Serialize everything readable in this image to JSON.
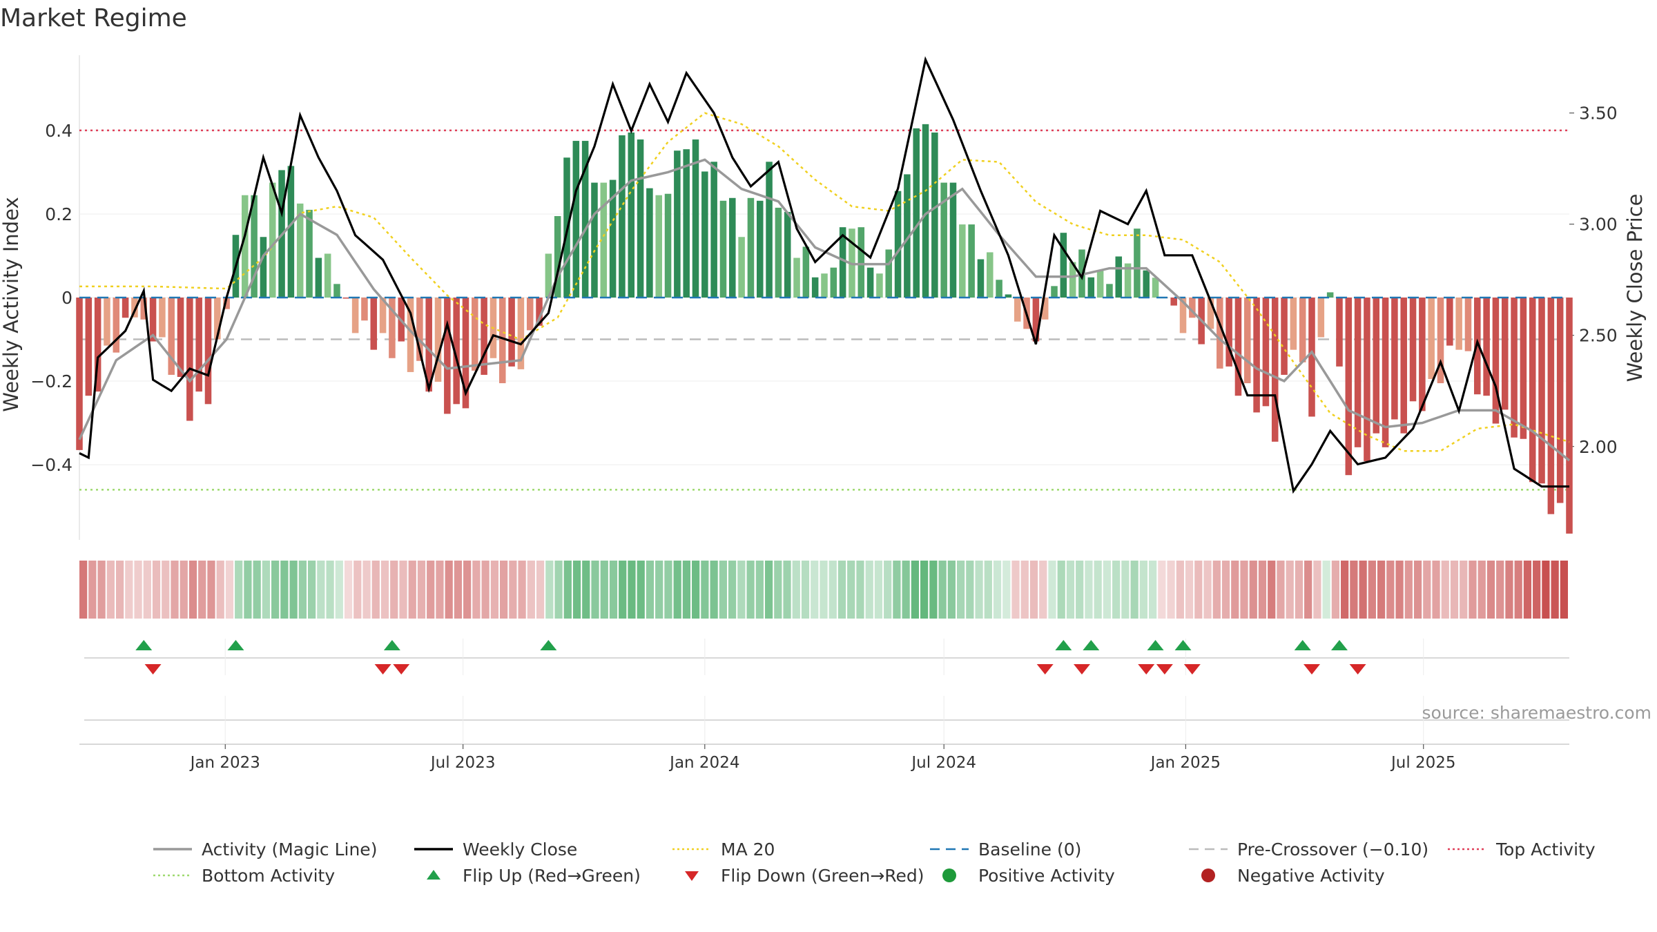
{
  "title": "Market Regime",
  "source": "source: sharemaestro.com",
  "legend": [
    {
      "label": "Activity (Magic Line)",
      "icon": "solid-line",
      "color": "#999999"
    },
    {
      "label": "Weekly Close",
      "icon": "solid-line",
      "color": "#000000"
    },
    {
      "label": "MA 20",
      "icon": "dotted-line",
      "color": "#f0d020"
    },
    {
      "label": "Baseline (0)",
      "icon": "dashed-line",
      "color": "#1f77b4"
    },
    {
      "label": "Pre-Crossover (−0.10)",
      "icon": "dashed-line",
      "color": "#bbbbbb"
    },
    {
      "label": "Top Activity",
      "icon": "dotted-line",
      "color": "#e0405a"
    },
    {
      "label": "Bottom Activity",
      "icon": "dotted-line",
      "color": "#9ed96e"
    },
    {
      "label": "Flip Up (Red→Green)",
      "icon": "triangle-up",
      "color": "#22a04b"
    },
    {
      "label": "Flip Down (Green→Red)",
      "icon": "triangle-down",
      "color": "#d62728"
    },
    {
      "label": "Positive Activity",
      "icon": "circle",
      "color": "#1e9a3a"
    },
    {
      "label": "Negative Activity",
      "icon": "circle",
      "color": "#b22222"
    }
  ],
  "chart_data": {
    "type": "bar",
    "ylabel": "Weekly Activity Index",
    "y2label": "Weekly Close Price",
    "ylim": [
      -0.58,
      0.58
    ],
    "y2lim": [
      1.58,
      3.76
    ],
    "yticks": [
      0.4,
      0.2,
      0,
      -0.2,
      -0.4
    ],
    "yticklabels": [
      "0.4",
      "0.2",
      "0",
      "−0.2",
      "−0.4"
    ],
    "y2ticks": [
      3.5,
      3.0,
      2.5,
      2.0
    ],
    "y2ticklabels": [
      "3.50",
      "3.00",
      "2.50",
      "2.00"
    ],
    "x_start": "2022-09-12",
    "x_end": "2025-10-20",
    "xticks": [
      "2023-01-01",
      "2023-07-01",
      "2024-01-01",
      "2024-07-01",
      "2025-01-01",
      "2025-07-01"
    ],
    "xticklabels": [
      "Jan 2023",
      "Jul 2023",
      "Jan 2024",
      "Jul 2024",
      "Jan 2025",
      "Jul 2025"
    ],
    "colors": {
      "pos_dark": "#2e8b57",
      "pos_mid": "#52a56a",
      "pos_light": "#86c588",
      "neg_dark": "#c9514f",
      "neg_mid": "#e08a78",
      "neg_light": "#e6a286",
      "close": "#000000",
      "magic": "#999999",
      "ma20": "#f0d020",
      "baseline": "#1f77b4",
      "precross": "#bbbbbb",
      "top": "#e0405a",
      "bottom": "#9ed96e",
      "flip_up": "#22a04b",
      "flip_down": "#d62728"
    },
    "ref_lines": {
      "baseline": 0,
      "pre_crossover": -0.1,
      "top_activity": 0.4,
      "bottom_activity": -0.46
    },
    "activity_anchors": [
      [
        "2022-09-12",
        -0.34
      ],
      [
        "2022-09-19",
        -0.26
      ],
      [
        "2022-10-03",
        -0.14
      ],
      [
        "2022-10-24",
        -0.04
      ],
      [
        "2022-11-07",
        -0.08
      ],
      [
        "2022-11-21",
        -0.16
      ],
      [
        "2022-12-05",
        -0.27
      ],
      [
        "2022-12-19",
        -0.23
      ],
      [
        "2023-01-02",
        -0.02
      ],
      [
        "2023-01-16",
        0.27
      ],
      [
        "2023-01-30",
        0.17
      ],
      [
        "2023-02-13",
        0.33
      ],
      [
        "2023-02-27",
        0.25
      ],
      [
        "2023-03-13",
        0.12
      ],
      [
        "2023-03-27",
        0.04
      ],
      [
        "2023-04-10",
        -0.06
      ],
      [
        "2023-04-24",
        -0.1
      ],
      [
        "2023-05-15",
        -0.13
      ],
      [
        "2023-06-05",
        -0.2
      ],
      [
        "2023-06-26",
        -0.28
      ],
      [
        "2023-07-17",
        -0.16
      ],
      [
        "2023-08-07",
        -0.19
      ],
      [
        "2023-08-28",
        -0.06
      ],
      [
        "2023-09-11",
        0.22
      ],
      [
        "2023-09-25",
        0.4
      ],
      [
        "2023-10-16",
        0.25
      ],
      [
        "2023-11-06",
        0.42
      ],
      [
        "2023-11-27",
        0.22
      ],
      [
        "2023-12-18",
        0.38
      ],
      [
        "2024-01-08",
        0.3
      ],
      [
        "2024-01-29",
        0.17
      ],
      [
        "2024-02-19",
        0.3
      ],
      [
        "2024-03-11",
        0.12
      ],
      [
        "2024-04-01",
        0.05
      ],
      [
        "2024-04-22",
        0.19
      ],
      [
        "2024-05-13",
        0.05
      ],
      [
        "2024-06-03",
        0.32
      ],
      [
        "2024-06-17",
        0.44
      ],
      [
        "2024-07-01",
        0.3
      ],
      [
        "2024-07-22",
        0.15
      ],
      [
        "2024-08-12",
        0.05
      ],
      [
        "2024-09-02",
        -0.1
      ],
      [
        "2024-09-16",
        -0.06
      ],
      [
        "2024-09-30",
        0.13
      ],
      [
        "2024-10-14",
        0.09
      ],
      [
        "2024-11-04",
        0.04
      ],
      [
        "2024-11-25",
        0.14
      ],
      [
        "2024-12-09",
        0.04
      ],
      [
        "2024-12-30",
        -0.06
      ],
      [
        "2025-01-20",
        -0.1
      ],
      [
        "2025-02-03",
        -0.19
      ],
      [
        "2025-02-24",
        -0.25
      ],
      [
        "2025-03-10",
        -0.32
      ],
      [
        "2025-03-24",
        -0.1
      ],
      [
        "2025-04-07",
        -0.26
      ],
      [
        "2025-04-21",
        0.02
      ],
      [
        "2025-05-05",
        -0.4
      ],
      [
        "2025-05-26",
        -0.35
      ],
      [
        "2025-06-16",
        -0.3
      ],
      [
        "2025-07-07",
        -0.22
      ],
      [
        "2025-07-28",
        -0.1
      ],
      [
        "2025-08-18",
        -0.26
      ],
      [
        "2025-09-08",
        -0.31
      ],
      [
        "2025-09-29",
        -0.47
      ],
      [
        "2025-10-20",
        -0.54
      ]
    ],
    "close_anchors": [
      [
        "2022-09-12",
        1.97
      ],
      [
        "2022-09-19",
        1.95
      ],
      [
        "2022-09-26",
        2.4
      ],
      [
        "2022-10-17",
        2.52
      ],
      [
        "2022-10-31",
        2.7
      ],
      [
        "2022-11-07",
        2.3
      ],
      [
        "2022-11-21",
        2.25
      ],
      [
        "2022-12-05",
        2.35
      ],
      [
        "2022-12-19",
        2.32
      ],
      [
        "2023-01-02",
        2.67
      ],
      [
        "2023-01-16",
        2.95
      ],
      [
        "2023-01-30",
        3.3
      ],
      [
        "2023-02-13",
        3.05
      ],
      [
        "2023-02-27",
        3.49
      ],
      [
        "2023-03-13",
        3.3
      ],
      [
        "2023-03-27",
        3.15
      ],
      [
        "2023-04-10",
        2.95
      ],
      [
        "2023-05-01",
        2.84
      ],
      [
        "2023-05-22",
        2.6
      ],
      [
        "2023-06-05",
        2.26
      ],
      [
        "2023-06-19",
        2.55
      ],
      [
        "2023-07-03",
        2.24
      ],
      [
        "2023-07-24",
        2.5
      ],
      [
        "2023-08-14",
        2.46
      ],
      [
        "2023-09-04",
        2.6
      ],
      [
        "2023-09-25",
        3.15
      ],
      [
        "2023-10-09",
        3.35
      ],
      [
        "2023-10-23",
        3.63
      ],
      [
        "2023-11-06",
        3.42
      ],
      [
        "2023-11-20",
        3.63
      ],
      [
        "2023-12-04",
        3.46
      ],
      [
        "2023-12-18",
        3.68
      ],
      [
        "2024-01-08",
        3.5
      ],
      [
        "2024-01-22",
        3.3
      ],
      [
        "2024-02-05",
        3.17
      ],
      [
        "2024-02-26",
        3.28
      ],
      [
        "2024-03-11",
        2.98
      ],
      [
        "2024-03-25",
        2.83
      ],
      [
        "2024-04-15",
        2.95
      ],
      [
        "2024-05-06",
        2.85
      ],
      [
        "2024-05-27",
        3.16
      ],
      [
        "2024-06-17",
        3.74
      ],
      [
        "2024-07-08",
        3.47
      ],
      [
        "2024-07-29",
        3.15
      ],
      [
        "2024-08-19",
        2.86
      ],
      [
        "2024-09-09",
        2.46
      ],
      [
        "2024-09-23",
        2.95
      ],
      [
        "2024-10-14",
        2.76
      ],
      [
        "2024-10-28",
        3.06
      ],
      [
        "2024-11-18",
        3.0
      ],
      [
        "2024-12-02",
        3.15
      ],
      [
        "2024-12-16",
        2.86
      ],
      [
        "2025-01-06",
        2.86
      ],
      [
        "2025-01-27",
        2.55
      ],
      [
        "2025-02-17",
        2.23
      ],
      [
        "2025-03-10",
        2.23
      ],
      [
        "2025-03-24",
        1.8
      ],
      [
        "2025-04-07",
        1.92
      ],
      [
        "2025-04-21",
        2.07
      ],
      [
        "2025-05-12",
        1.92
      ],
      [
        "2025-06-02",
        1.95
      ],
      [
        "2025-06-23",
        2.08
      ],
      [
        "2025-07-14",
        2.38
      ],
      [
        "2025-07-28",
        2.16
      ],
      [
        "2025-08-11",
        2.47
      ],
      [
        "2025-08-25",
        2.27
      ],
      [
        "2025-09-08",
        1.9
      ],
      [
        "2025-09-29",
        1.82
      ],
      [
        "2025-10-20",
        1.82
      ]
    ],
    "magic_anchors": [
      [
        "2022-09-12",
        -0.34
      ],
      [
        "2022-10-10",
        -0.15
      ],
      [
        "2022-11-07",
        -0.09
      ],
      [
        "2022-12-05",
        -0.2
      ],
      [
        "2023-01-02",
        -0.1
      ],
      [
        "2023-01-30",
        0.1
      ],
      [
        "2023-02-27",
        0.2
      ],
      [
        "2023-03-27",
        0.15
      ],
      [
        "2023-04-24",
        0.02
      ],
      [
        "2023-05-22",
        -0.08
      ],
      [
        "2023-06-19",
        -0.17
      ],
      [
        "2023-07-17",
        -0.16
      ],
      [
        "2023-08-14",
        -0.15
      ],
      [
        "2023-09-11",
        0.05
      ],
      [
        "2023-10-09",
        0.2
      ],
      [
        "2023-11-06",
        0.28
      ],
      [
        "2023-12-04",
        0.3
      ],
      [
        "2024-01-01",
        0.33
      ],
      [
        "2024-01-29",
        0.26
      ],
      [
        "2024-02-26",
        0.23
      ],
      [
        "2024-03-25",
        0.12
      ],
      [
        "2024-04-22",
        0.08
      ],
      [
        "2024-05-20",
        0.08
      ],
      [
        "2024-06-17",
        0.2
      ],
      [
        "2024-07-15",
        0.26
      ],
      [
        "2024-08-12",
        0.15
      ],
      [
        "2024-09-09",
        0.05
      ],
      [
        "2024-10-07",
        0.05
      ],
      [
        "2024-11-04",
        0.07
      ],
      [
        "2024-12-02",
        0.07
      ],
      [
        "2024-12-30",
        -0.01
      ],
      [
        "2025-01-27",
        -0.1
      ],
      [
        "2025-02-24",
        -0.17
      ],
      [
        "2025-03-17",
        -0.2
      ],
      [
        "2025-04-07",
        -0.13
      ],
      [
        "2025-05-05",
        -0.27
      ],
      [
        "2025-06-02",
        -0.31
      ],
      [
        "2025-06-30",
        -0.3
      ],
      [
        "2025-07-28",
        -0.27
      ],
      [
        "2025-08-25",
        -0.27
      ],
      [
        "2025-09-22",
        -0.32
      ],
      [
        "2025-10-20",
        -0.39
      ]
    ],
    "ma20_anchors": [
      [
        "2022-09-12",
        2.72
      ],
      [
        "2022-11-07",
        2.72
      ],
      [
        "2023-01-02",
        2.71
      ],
      [
        "2023-01-30",
        2.85
      ],
      [
        "2023-02-27",
        3.05
      ],
      [
        "2023-03-27",
        3.08
      ],
      [
        "2023-04-24",
        3.03
      ],
      [
        "2023-05-22",
        2.85
      ],
      [
        "2023-06-19",
        2.68
      ],
      [
        "2023-07-17",
        2.55
      ],
      [
        "2023-08-14",
        2.48
      ],
      [
        "2023-09-11",
        2.58
      ],
      [
        "2023-10-09",
        2.88
      ],
      [
        "2023-11-06",
        3.15
      ],
      [
        "2023-12-04",
        3.37
      ],
      [
        "2024-01-01",
        3.5
      ],
      [
        "2024-01-29",
        3.45
      ],
      [
        "2024-02-26",
        3.35
      ],
      [
        "2024-03-25",
        3.2
      ],
      [
        "2024-04-22",
        3.08
      ],
      [
        "2024-05-20",
        3.06
      ],
      [
        "2024-06-17",
        3.15
      ],
      [
        "2024-07-15",
        3.29
      ],
      [
        "2024-08-12",
        3.28
      ],
      [
        "2024-09-09",
        3.1
      ],
      [
        "2024-10-07",
        3.0
      ],
      [
        "2024-11-04",
        2.95
      ],
      [
        "2024-12-02",
        2.95
      ],
      [
        "2024-12-30",
        2.93
      ],
      [
        "2025-01-27",
        2.83
      ],
      [
        "2025-02-24",
        2.62
      ],
      [
        "2025-03-24",
        2.38
      ],
      [
        "2025-04-21",
        2.15
      ],
      [
        "2025-05-19",
        2.05
      ],
      [
        "2025-06-16",
        1.98
      ],
      [
        "2025-07-14",
        1.98
      ],
      [
        "2025-08-11",
        2.08
      ],
      [
        "2025-09-08",
        2.1
      ],
      [
        "2025-10-20",
        2.02
      ]
    ],
    "flip_up": [
      "2022-10-31",
      "2023-01-09",
      "2023-05-08",
      "2023-09-04",
      "2024-09-30",
      "2024-10-21",
      "2024-12-09",
      "2024-12-30",
      "2025-03-31",
      "2025-04-28"
    ],
    "flip_down": [
      "2022-11-07",
      "2023-05-01",
      "2023-05-15",
      "2024-09-16",
      "2024-10-14",
      "2024-12-02",
      "2024-12-16",
      "2025-01-06",
      "2025-04-07",
      "2025-05-12"
    ]
  }
}
